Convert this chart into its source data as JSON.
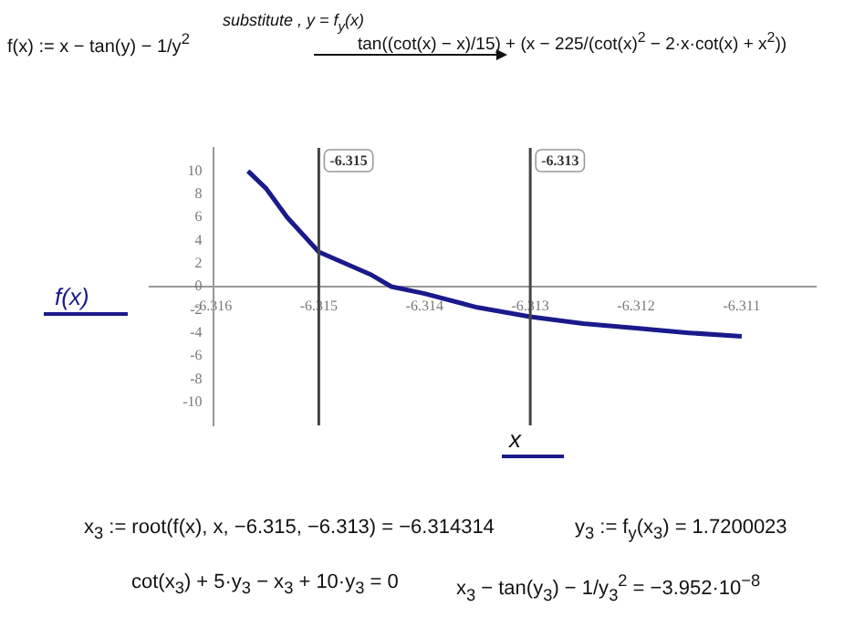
{
  "chart_data": {
    "type": "line",
    "xlabel": "x",
    "series": [
      {
        "name": "f(x)",
        "color": "#1a1a8c",
        "x": [
          -6.31567,
          -6.3155,
          -6.3153,
          -6.315,
          -6.3145,
          -6.314314,
          -6.314,
          -6.3135,
          -6.313,
          -6.3125,
          -6.312,
          -6.3115,
          -6.311
        ],
        "values": [
          10,
          8.5,
          6.0,
          3.0,
          1.0,
          0,
          -0.6,
          -1.8,
          -2.6,
          -3.2,
          -3.6,
          -4.0,
          -4.3
        ]
      }
    ],
    "xlim": [
      -6.3166,
      -6.3103
    ],
    "ylim": [
      -12,
      12
    ],
    "xticks": [
      -6.316,
      -6.315,
      -6.314,
      -6.313,
      -6.312,
      -6.311
    ],
    "yticks": [
      -10,
      -8,
      -6,
      -4,
      -2,
      0,
      2,
      4,
      6,
      8,
      10
    ],
    "grid": false,
    "legend": "left",
    "marker": "none",
    "line_style": "solid",
    "ref_lines": [
      {
        "axis": "x",
        "value": -6.315,
        "label": "-6.315",
        "color": "#444444"
      },
      {
        "axis": "x",
        "value": -6.313,
        "label": "-6.313",
        "color": "#444444"
      }
    ],
    "annotations": [
      "f(x) := x − tan(y) − 1/y$^{2}$",
      "substitute , y = f$_{y}$(x)",
      "tan((cot(x) − x)/15) + (x − 225/(cot(x)$^{2}$ − 2·x·cot(x) + x$^{2}$))",
      "x$_{3}$ := root(f(x), x, −6.315, −6.313) = −6.314314",
      "y$_{3}$ := f$_{y}$(x$_{3}$) = 1.7200023",
      "cot(x$_{3}$) + 5·y$_{3}$ − x$_{3}$ + 10·y$_{3}$ = 0",
      "x$_{3}$ − tan(y$_{3}$) − 1/y$_{3}$$^{2}$ = −3.952·10$^{−8}$"
    ]
  }
}
